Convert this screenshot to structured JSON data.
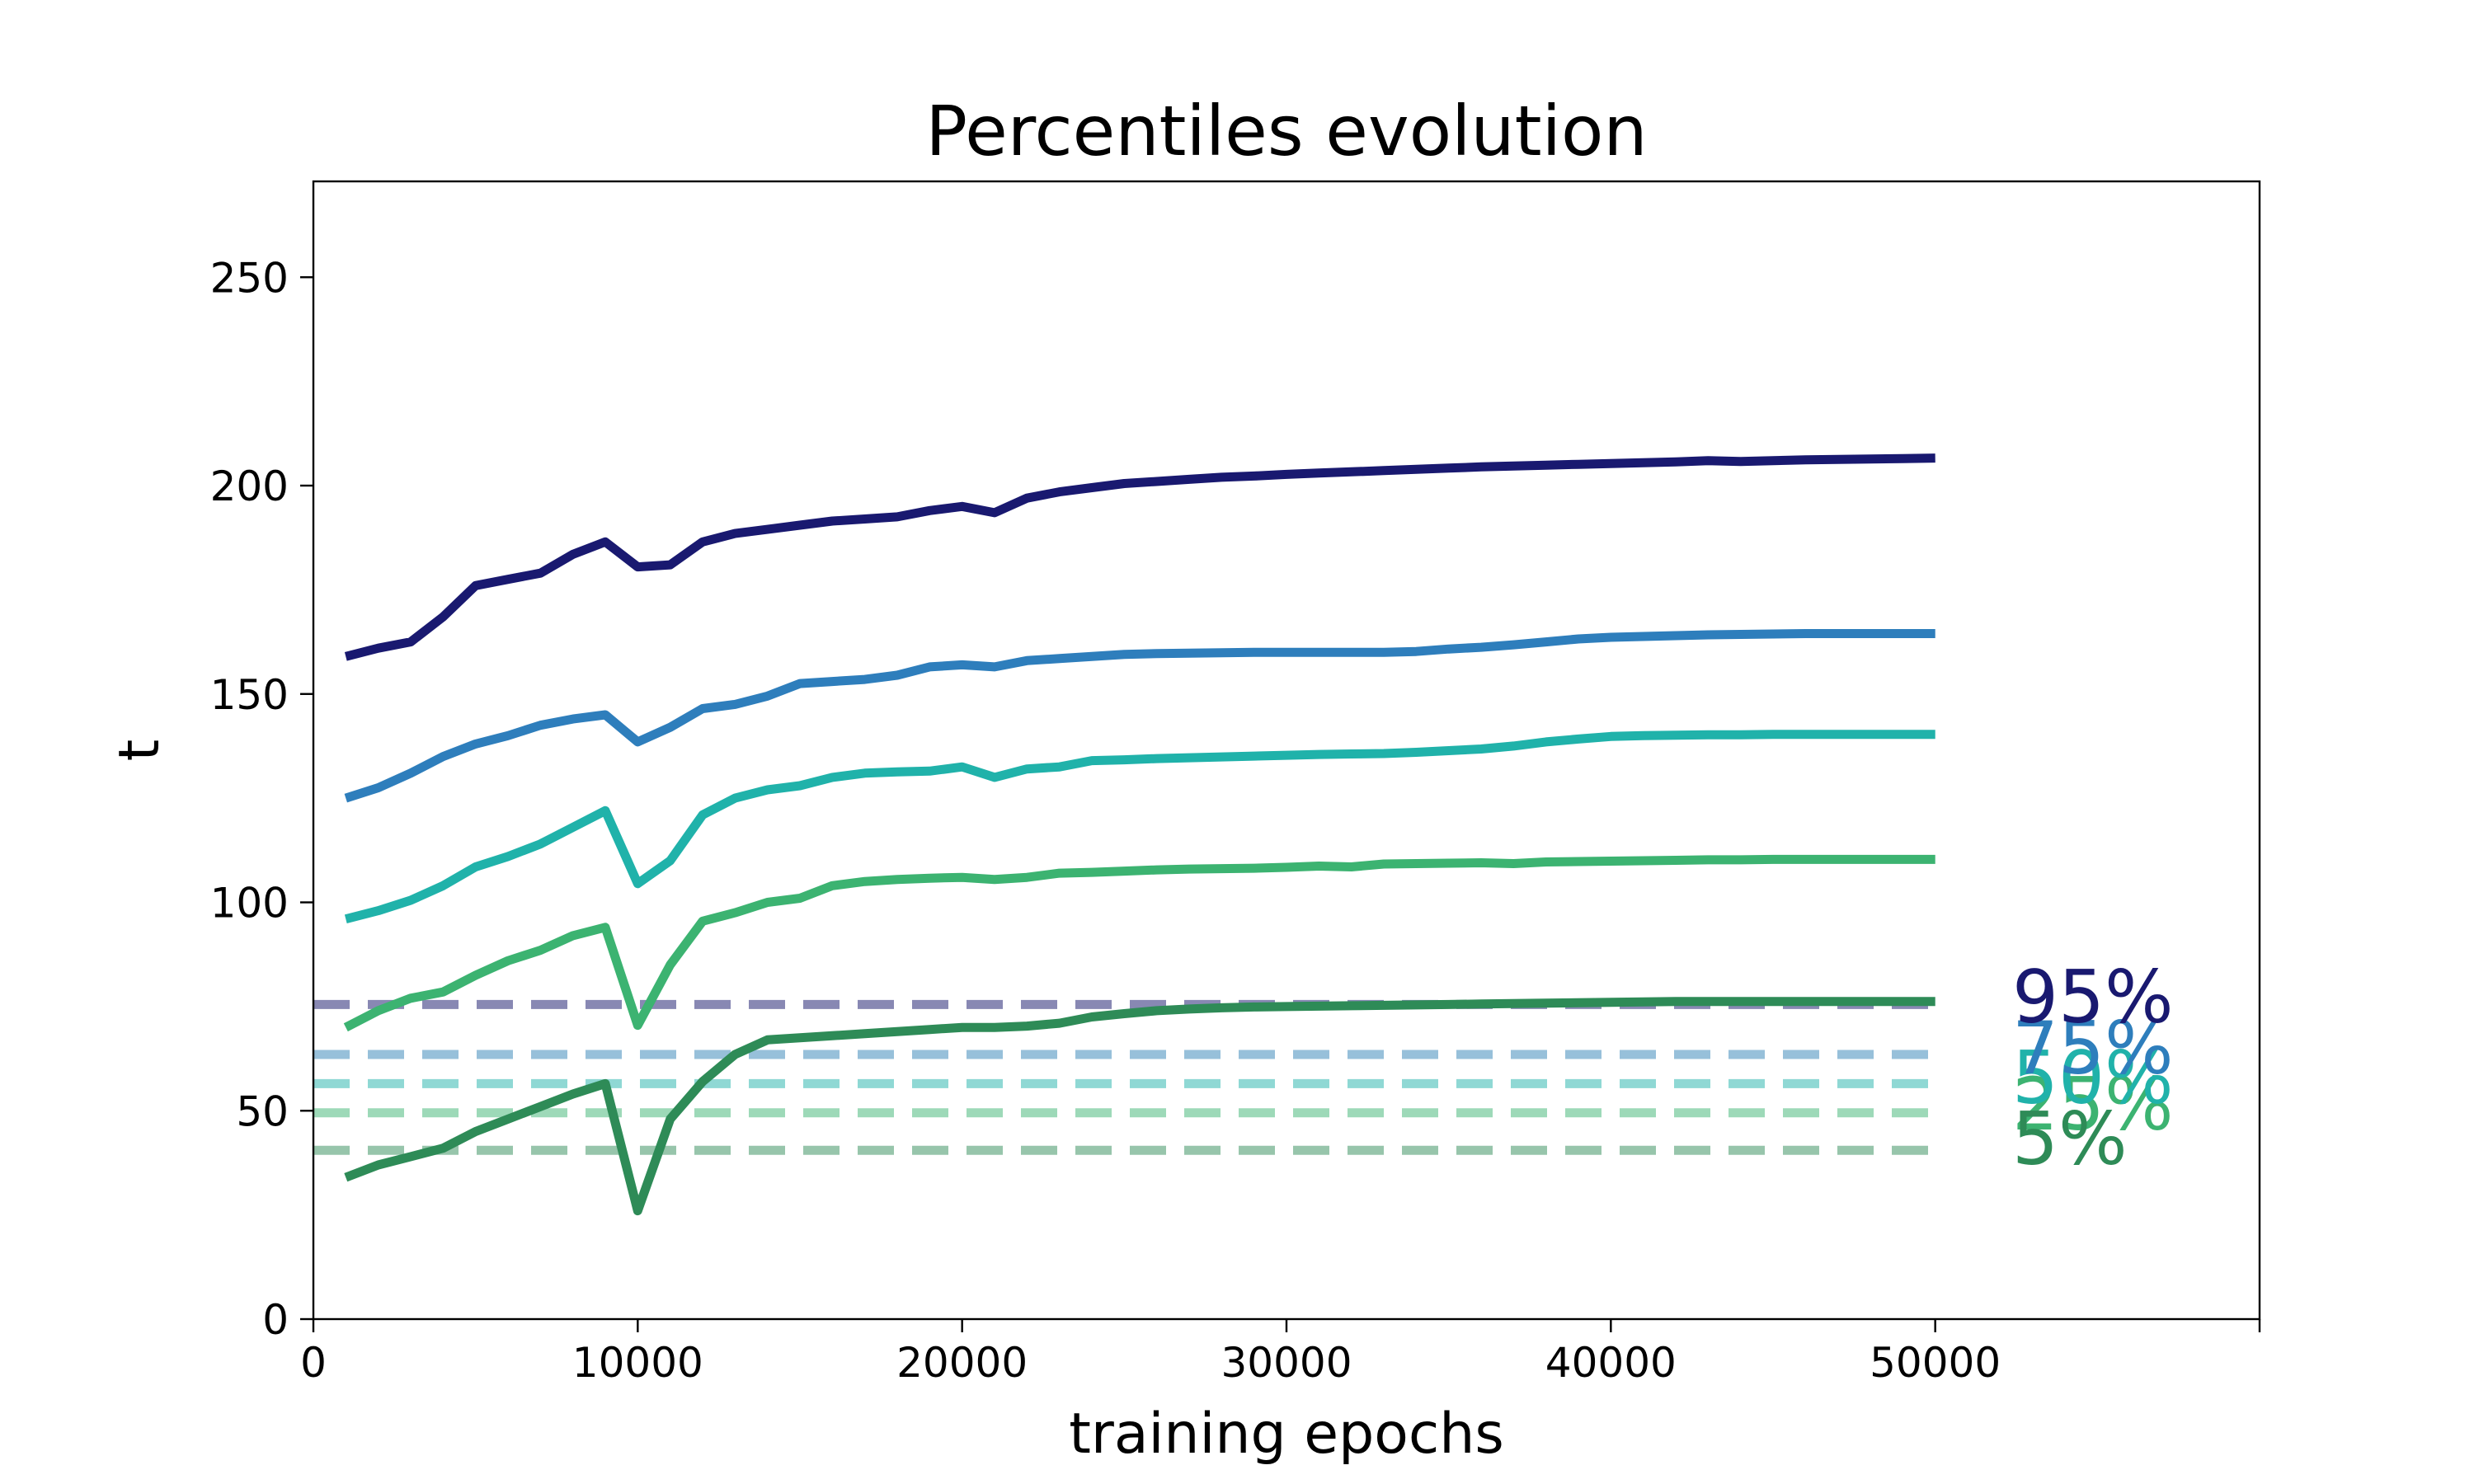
{
  "chart_data": {
    "type": "line",
    "title": "Percentiles evolution",
    "xlabel": "training epochs",
    "ylabel": "t",
    "xlim": [
      0,
      60000
    ],
    "ylim": [
      0,
      273
    ],
    "xticks": [
      0,
      10000,
      20000,
      30000,
      40000,
      50000
    ],
    "yticks": [
      0,
      50,
      100,
      150,
      200,
      250
    ],
    "grid": false,
    "x": [
      1000,
      2000,
      3000,
      4000,
      5000,
      6000,
      7000,
      8000,
      9000,
      10000,
      11000,
      12000,
      13000,
      14000,
      15000,
      16000,
      17000,
      18000,
      19000,
      20000,
      21000,
      22000,
      23000,
      24000,
      25000,
      26000,
      27000,
      28000,
      29000,
      30000,
      31000,
      32000,
      33000,
      34000,
      35000,
      36000,
      37000,
      38000,
      39000,
      40000,
      41000,
      42000,
      43000,
      44000,
      45000,
      46000,
      47000,
      48000,
      49000,
      50000
    ],
    "series": [
      {
        "name": "95%",
        "color": "#191970",
        "values": [
          159,
          161,
          162.5,
          168.5,
          176,
          177.5,
          179,
          183.5,
          186.5,
          180.5,
          181,
          186.5,
          188.5,
          189.5,
          190.5,
          191.5,
          192,
          192.5,
          194,
          195,
          193.5,
          197,
          198.5,
          199.5,
          200.5,
          201,
          201.5,
          202,
          202.3,
          202.7,
          203,
          203.3,
          203.6,
          203.9,
          204.2,
          204.5,
          204.7,
          204.9,
          205.1,
          205.3,
          205.5,
          205.7,
          206,
          205.8,
          206,
          206.2,
          206.3,
          206.4,
          206.5,
          206.6
        ],
        "threshold": 75.5,
        "threshold_color": "#8888b3"
      },
      {
        "name": "75%",
        "color": "#2e7ebc",
        "values": [
          125,
          127.5,
          131,
          135,
          138,
          140,
          142.5,
          144,
          145,
          138.5,
          142,
          146.5,
          147.5,
          149.5,
          152.5,
          153,
          153.5,
          154.5,
          156.5,
          157,
          156.5,
          158,
          158.5,
          159,
          159.5,
          159.7,
          159.8,
          159.9,
          160,
          160,
          160,
          160,
          160,
          160.2,
          160.8,
          161.2,
          161.8,
          162.5,
          163.2,
          163.6,
          163.8,
          164,
          164.2,
          164.3,
          164.4,
          164.5,
          164.5,
          164.5,
          164.5,
          164.5
        ],
        "threshold": 63.5,
        "threshold_color": "#97c0da"
      },
      {
        "name": "50%",
        "color": "#20b2aa",
        "values": [
          96,
          98,
          100.5,
          104,
          108.5,
          111,
          114,
          118,
          122,
          104.5,
          110,
          121,
          125,
          127,
          128,
          130,
          131,
          131.3,
          131.5,
          132.5,
          130,
          132,
          132.5,
          134,
          134.2,
          134.5,
          134.7,
          134.9,
          135.1,
          135.3,
          135.5,
          135.6,
          135.7,
          136,
          136.4,
          136.8,
          137.5,
          138.5,
          139.2,
          139.8,
          140,
          140.1,
          140.2,
          140.2,
          140.3,
          140.3,
          140.3,
          140.3,
          140.3,
          140.3
        ],
        "threshold": 56.5,
        "threshold_color": "#8fd8d4"
      },
      {
        "name": "25%",
        "color": "#3cb371",
        "values": [
          70,
          74,
          77,
          78.5,
          82.5,
          86,
          88.5,
          92,
          94,
          70.5,
          85,
          95.5,
          97.5,
          100,
          101,
          104,
          105,
          105.5,
          105.8,
          106,
          105.5,
          106,
          107,
          107.2,
          107.5,
          107.8,
          108,
          108.1,
          108.2,
          108.4,
          108.7,
          108.5,
          109.2,
          109.3,
          109.4,
          109.5,
          109.3,
          109.7,
          109.8,
          109.9,
          110,
          110.1,
          110.2,
          110.2,
          110.3,
          110.3,
          110.3,
          110.3,
          110.3,
          110.3
        ],
        "threshold": 49.5,
        "threshold_color": "#9dd9b8"
      },
      {
        "name": "5%",
        "color": "#2e8b57",
        "values": [
          34,
          37,
          39,
          41,
          45,
          48,
          51,
          54,
          56.5,
          26,
          48,
          57,
          63.5,
          67,
          67.5,
          68,
          68.5,
          69,
          69.5,
          70,
          70,
          70.3,
          71,
          72.5,
          73.3,
          74,
          74.4,
          74.7,
          74.9,
          75,
          75.1,
          75.2,
          75.3,
          75.4,
          75.5,
          75.6,
          75.7,
          75.8,
          75.9,
          76,
          76.1,
          76.2,
          76.2,
          76.2,
          76.2,
          76.2,
          76.2,
          76.2,
          76.2,
          76.2
        ],
        "threshold": 40.5,
        "threshold_color": "#97c5ab"
      }
    ]
  }
}
